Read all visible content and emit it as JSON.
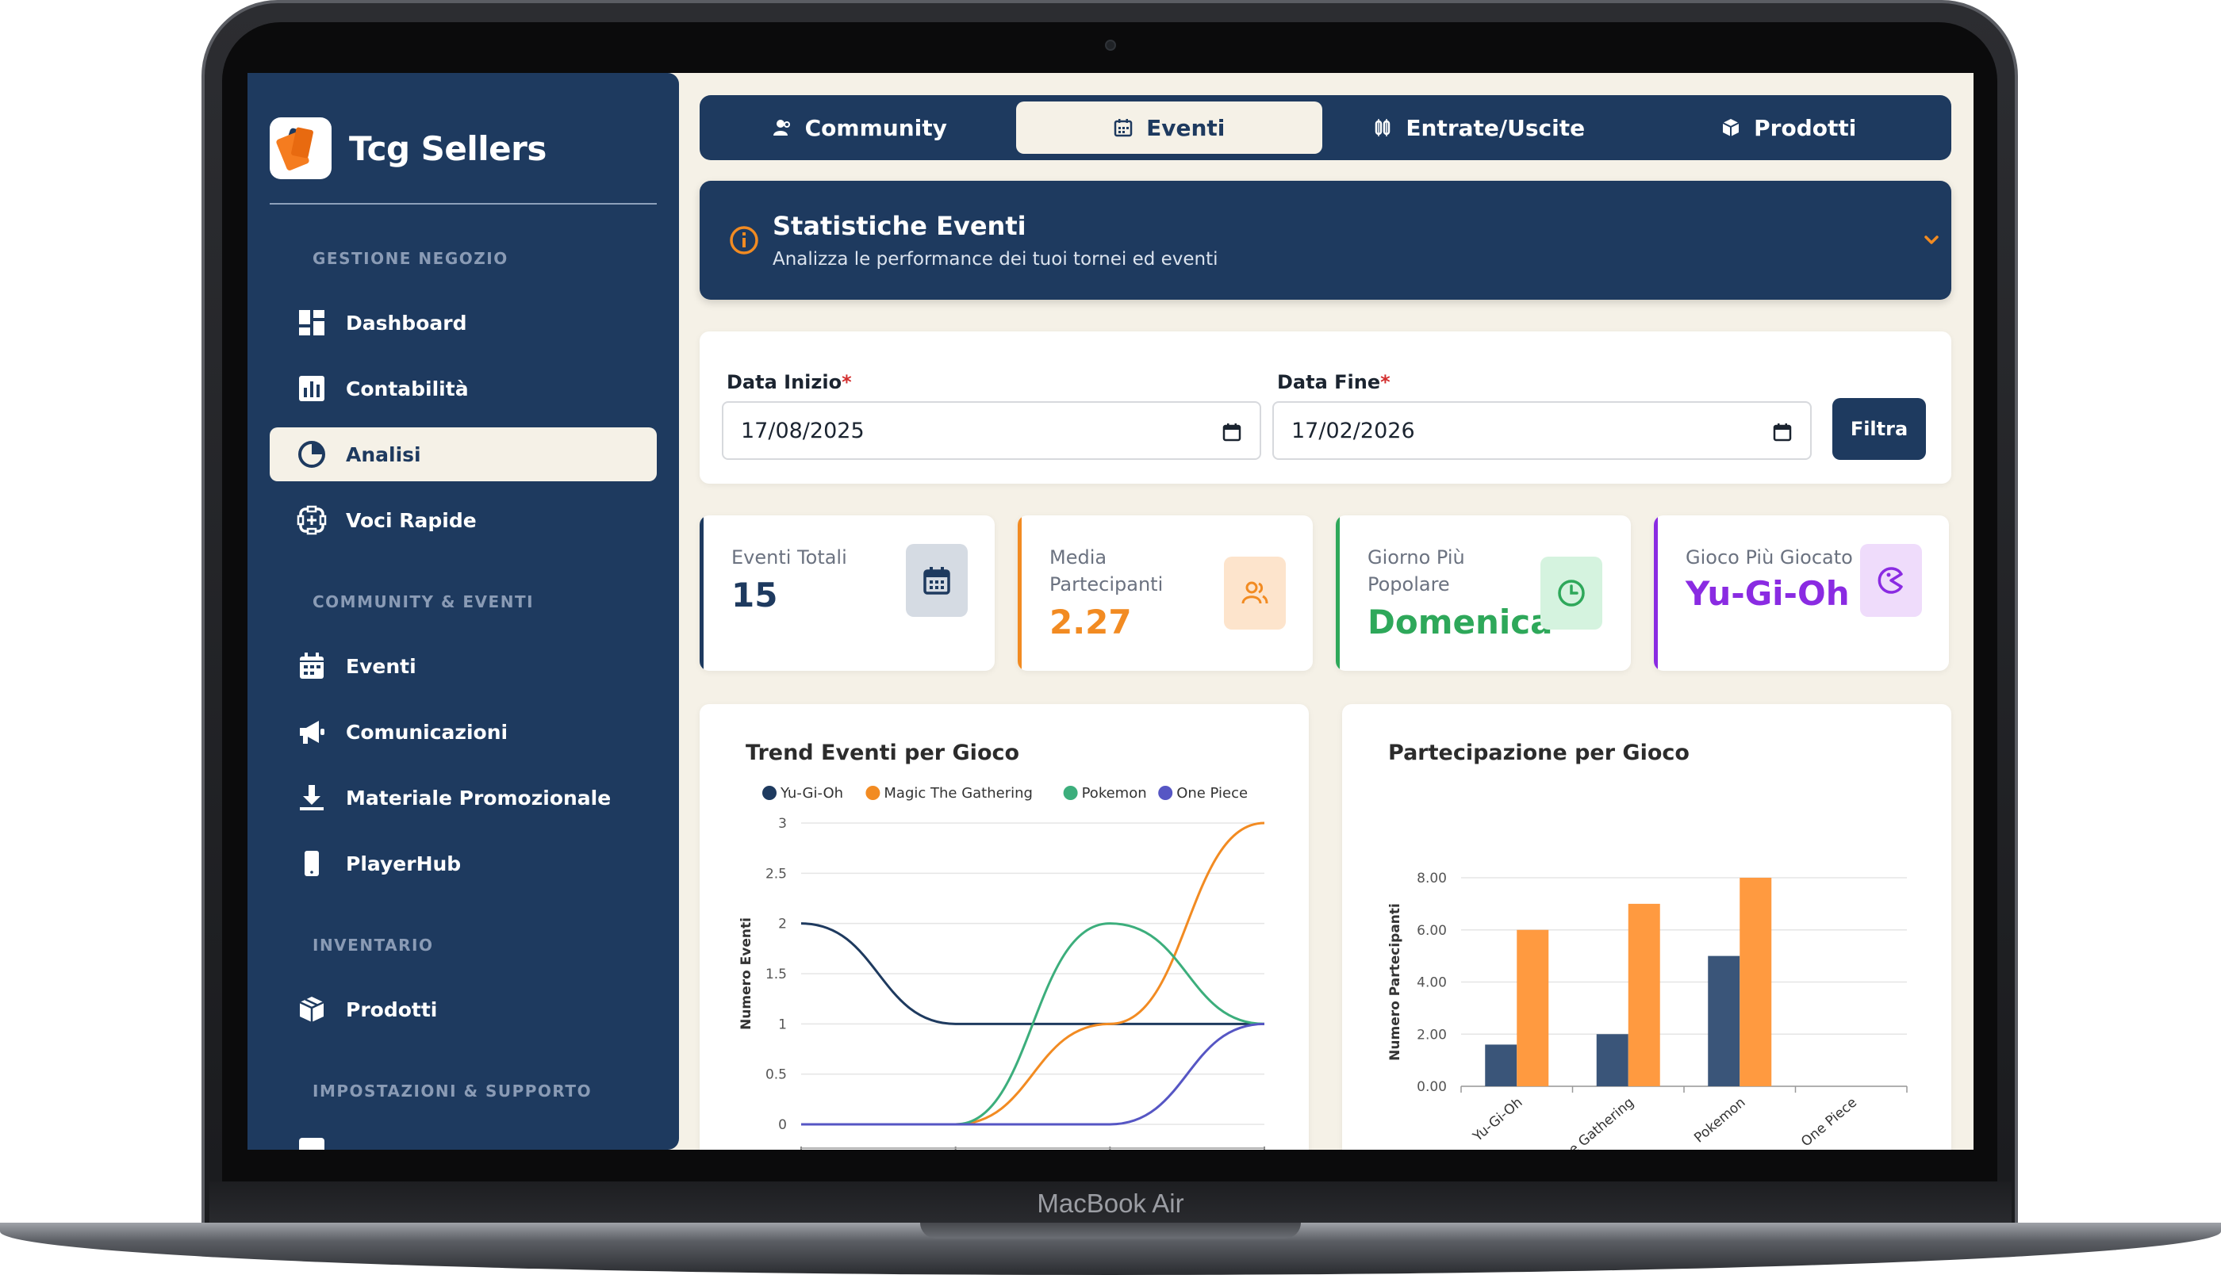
{
  "device": {
    "label": "MacBook Air"
  },
  "brand": {
    "name": "Tcg Sellers"
  },
  "sidebar": {
    "sections": [
      {
        "title": "GESTIONE NEGOZIO"
      },
      {
        "title": "COMMUNITY & EVENTI"
      },
      {
        "title": "INVENTARIO"
      },
      {
        "title": "IMPOSTAZIONI & SUPPORTO"
      }
    ],
    "items": [
      {
        "label": "Dashboard",
        "icon": "dashboard-icon"
      },
      {
        "label": "Contabilità",
        "icon": "bar-chart-icon"
      },
      {
        "label": "Analisi",
        "icon": "pie-chart-icon",
        "active": true
      },
      {
        "label": "Voci Rapide",
        "icon": "quick-actions-icon"
      },
      {
        "label": "Eventi",
        "icon": "calendar-icon"
      },
      {
        "label": "Comunicazioni",
        "icon": "megaphone-icon"
      },
      {
        "label": "Materiale Promozionale",
        "icon": "download-icon"
      },
      {
        "label": "PlayerHub",
        "icon": "phone-icon"
      },
      {
        "label": "Prodotti",
        "icon": "box-icon"
      }
    ]
  },
  "tabs": [
    {
      "label": "Community",
      "icon": "users-icon"
    },
    {
      "label": "Eventi",
      "icon": "calendar-icon",
      "active": true
    },
    {
      "label": "Entrate/Uscite",
      "icon": "money-icon"
    },
    {
      "label": "Prodotti",
      "icon": "box-icon"
    }
  ],
  "banner": {
    "title": "Statistiche Eventi",
    "subtitle": "Analizza le performance dei tuoi tornei ed eventi"
  },
  "filter": {
    "start_label": "Data Inizio",
    "end_label": "Data Fine",
    "required_mark": "*",
    "start_value": "17/08/2025",
    "end_value": "17/02/2026",
    "button_label": "Filtra"
  },
  "kpis": [
    {
      "label": "Eventi Totali",
      "value": "15",
      "color": "#1e3a5f",
      "icon": "calendar-icon"
    },
    {
      "label": "Media Partecipanti",
      "value": "2.27",
      "color": "#f28b22",
      "icon": "users-icon"
    },
    {
      "label": "Giorno Più Popolare",
      "value": "Domenica",
      "color": "#2ea85a",
      "icon": "clock-icon"
    },
    {
      "label": "Gioco Più Giocato",
      "value": "Yu-Gi-Oh",
      "color": "#8a2be2",
      "icon": "game-icon"
    }
  ],
  "colors": {
    "primary": "#1e3a5f",
    "background": "#f5f1e7",
    "yugioh": "#1e3a5f",
    "magic": "#f28b22",
    "pokemon": "#3cae7c",
    "onepiece": "#5656c4"
  },
  "chart_data": [
    {
      "type": "line",
      "title": "Trend Eventi per Gioco",
      "ylabel": "Numero Eventi",
      "xlabel": "",
      "ylim": [
        0,
        3
      ],
      "yticks": [
        "0",
        "0.5",
        "1",
        "1.5",
        "2",
        "2.5",
        "3"
      ],
      "yticks_values": [
        0,
        0.5,
        1,
        1.5,
        2,
        2.5,
        3
      ],
      "x": [
        0,
        1,
        2,
        3
      ],
      "legend_position": "top",
      "series": [
        {
          "name": "Yu-Gi-Oh",
          "values": [
            2,
            1,
            1,
            1
          ],
          "color": "#1e3a5f"
        },
        {
          "name": "Magic The Gathering",
          "values": [
            0,
            0,
            1,
            3
          ],
          "color": "#f28b22"
        },
        {
          "name": "Pokemon",
          "values": [
            0,
            0,
            2,
            1
          ],
          "color": "#3cae7c"
        },
        {
          "name": "One Piece",
          "values": [
            0,
            0,
            0,
            1
          ],
          "color": "#5656c4"
        }
      ]
    },
    {
      "type": "bar",
      "title": "Partecipazione per Gioco",
      "ylabel": "Numero Partecipanti",
      "xlabel": "",
      "ylim": [
        0,
        8
      ],
      "yticks": [
        "0.00",
        "2.00",
        "4.00",
        "6.00",
        "8.00"
      ],
      "yticks_values": [
        0,
        2,
        4,
        6,
        8
      ],
      "categories": [
        "Yu-Gi-Oh",
        "Magic The Gathering",
        "Pokemon",
        "One Piece"
      ],
      "series": [
        {
          "values": [
            1.6,
            2,
            5,
            0
          ],
          "color": "#3a5579"
        },
        {
          "values": [
            6,
            7,
            8,
            0
          ],
          "color": "#ff9a40"
        }
      ]
    }
  ]
}
